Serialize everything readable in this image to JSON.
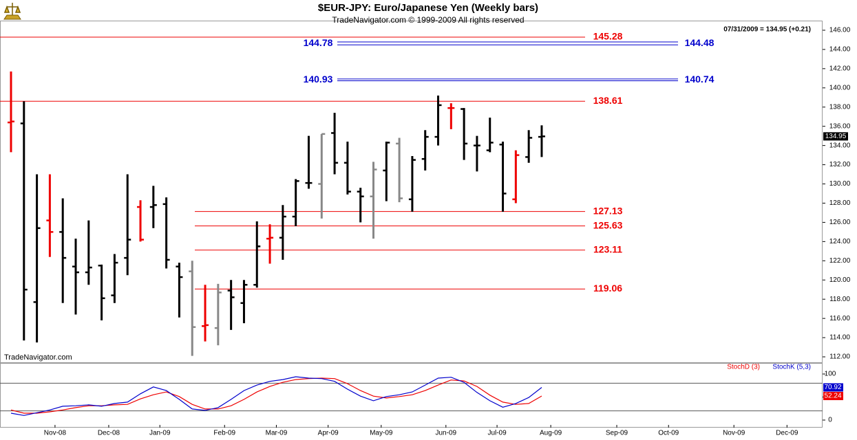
{
  "chart_data": [
    {
      "type": "ohlc",
      "title": "$EUR-JPY:  Euro/Japanese Yen  (Weekly bars)",
      "subtitle": "TradeNavigator.com © 1999-2009 All rights reserved",
      "annotation": "07/31/2009 = 134.95 (+0.21)",
      "watermark": "TradeNavigator.com",
      "xlim": [
        -0.85,
        62.7
      ],
      "ylim": [
        111.43,
        147.0
      ],
      "yticks": [
        {
          "value": 112,
          "label": "112.00"
        },
        {
          "value": 114,
          "label": "114.00"
        },
        {
          "value": 116,
          "label": "116.00"
        },
        {
          "value": 118,
          "label": "118.00"
        },
        {
          "value": 120,
          "label": "120.00"
        },
        {
          "value": 122,
          "label": "122.00"
        },
        {
          "value": 124,
          "label": "124.00"
        },
        {
          "value": 126,
          "label": "126.00"
        },
        {
          "value": 128,
          "label": "128.00"
        },
        {
          "value": 130,
          "label": "130.00"
        },
        {
          "value": 132,
          "label": "132.00"
        },
        {
          "value": 134,
          "label": "134.00"
        },
        {
          "value": 136,
          "label": "136.00"
        },
        {
          "value": 138,
          "label": "138.00"
        },
        {
          "value": 140,
          "label": "140.00"
        },
        {
          "value": 142,
          "label": "142.00"
        },
        {
          "value": 144,
          "label": "144.00"
        },
        {
          "value": 146,
          "label": "146.00"
        }
      ],
      "open": [
        136.4,
        136.3,
        117.7,
        126.2,
        125.0,
        121.4,
        120.8,
        121.5,
        118.4,
        122.3,
        127.6,
        127.6,
        127.9,
        121.4,
        120.9,
        115.2,
        115.0,
        118.9,
        117.6,
        119.5,
        124.3,
        124.4,
        126.6,
        130.1,
        130.0,
        135.3,
        132.2,
        129.2,
        128.7,
        131.4,
        134.2,
        128.4,
        132.6,
        134.9,
        137.9,
        137.8,
        134.0,
        133.5,
        134.1,
        128.4,
        132.8,
        134.9
      ],
      "high": [
        141.7,
        138.6,
        131.0,
        131.0,
        128.5,
        124.3,
        126.2,
        121.6,
        122.7,
        131.0,
        128.3,
        129.8,
        128.6,
        121.8,
        122.0,
        119.5,
        119.6,
        120.0,
        120.0,
        126.1,
        125.8,
        127.8,
        130.5,
        135.0,
        135.2,
        137.4,
        134.4,
        129.6,
        132.3,
        134.4,
        134.8,
        132.9,
        135.6,
        139.2,
        138.4,
        137.9,
        135.0,
        136.9,
        134.4,
        133.5,
        135.6,
        136.1
      ],
      "low": [
        133.3,
        113.7,
        113.5,
        122.4,
        117.6,
        116.4,
        119.5,
        115.8,
        117.6,
        120.5,
        124.0,
        125.4,
        121.2,
        116.1,
        112.1,
        113.6,
        113.2,
        114.8,
        115.5,
        119.2,
        121.7,
        122.1,
        125.6,
        129.5,
        126.4,
        131.0,
        128.9,
        126.0,
        124.3,
        128.2,
        128.1,
        127.1,
        131.4,
        134.0,
        135.7,
        132.5,
        131.3,
        133.3,
        127.1,
        128.0,
        132.2,
        132.8
      ],
      "close": [
        136.5,
        119.0,
        125.4,
        125.0,
        122.3,
        120.8,
        121.3,
        118.1,
        121.8,
        124.2,
        124.2,
        127.8,
        122.1,
        120.3,
        115.1,
        115.3,
        118.7,
        118.2,
        119.5,
        123.5,
        124.4,
        126.6,
        130.3,
        130.1,
        135.2,
        132.2,
        129.2,
        128.7,
        131.5,
        134.3,
        128.5,
        132.5,
        134.9,
        138.2,
        137.9,
        134.2,
        134.0,
        134.3,
        129.0,
        133.0,
        134.8,
        134.95
      ],
      "colors": [
        "#ee0000",
        "#000000",
        "#000000",
        "#ee0000",
        "#000000",
        "#000000",
        "#000000",
        "#000000",
        "#000000",
        "#000000",
        "#ee0000",
        "#000000",
        "#000000",
        "#000000",
        "#888888",
        "#ee0000",
        "#888888",
        "#000000",
        "#000000",
        "#000000",
        "#ee0000",
        "#000000",
        "#000000",
        "#000000",
        "#888888",
        "#000000",
        "#000000",
        "#000000",
        "#888888",
        "#000000",
        "#888888",
        "#000000",
        "#000000",
        "#000000",
        "#ee0000",
        "#000000",
        "#000000",
        "#000000",
        "#000000",
        "#ee0000",
        "#000000",
        "#000000"
      ],
      "levels": [
        {
          "value": 145.28,
          "color": "#ee0000"
        },
        {
          "value": 138.61,
          "color": "#ee0000"
        },
        {
          "value": 127.13,
          "color": "#ee0000"
        },
        {
          "value": 125.63,
          "color": "#ee0000"
        },
        {
          "value": 123.11,
          "color": "#ee0000"
        },
        {
          "value": 119.06,
          "color": "#ee0000"
        },
        {
          "value": 144.78,
          "color": "#0000cc"
        },
        {
          "value": 144.48,
          "color": "#0000cc"
        },
        {
          "value": 140.93,
          "color": "#0000cc"
        },
        {
          "value": 140.74,
          "color": "#0000cc"
        }
      ]
    },
    {
      "type": "line",
      "xlim": [
        -0.85,
        62.7
      ],
      "ylim": [
        -16.4,
        123.9
      ],
      "yticks": [
        0,
        50,
        100
      ],
      "levels": [
        20,
        80
      ],
      "xticks": [
        {
          "value": 3.4,
          "label": "Nov-08"
        },
        {
          "value": 7.55,
          "label": "Dec-08"
        },
        {
          "value": 11.5,
          "label": "Jan-09"
        },
        {
          "value": 16.5,
          "label": "Feb-09"
        },
        {
          "value": 20.5,
          "label": "Mar-09"
        },
        {
          "value": 24.5,
          "label": "Apr-09"
        },
        {
          "value": 28.6,
          "label": "May-09"
        },
        {
          "value": 33.6,
          "label": "Jun-09"
        },
        {
          "value": 37.55,
          "label": "Jul-09"
        },
        {
          "value": 41.7,
          "label": "Aug-09"
        },
        {
          "value": 46.8,
          "label": "Sep-09"
        },
        {
          "value": 50.8,
          "label": "Oct-09"
        },
        {
          "value": 55.85,
          "label": "Nov-09"
        },
        {
          "value": 59.95,
          "label": "Dec-09"
        }
      ],
      "series": [
        {
          "name": "StochD (3)",
          "color": "#ee0000",
          "values": [
            22,
            15,
            15,
            18,
            22,
            27,
            31,
            31,
            33,
            34,
            46,
            55,
            61,
            51,
            34,
            24,
            24,
            31,
            45,
            61,
            73,
            82,
            88,
            90,
            91,
            90,
            79,
            64,
            52,
            48,
            51,
            55,
            64,
            76,
            87,
            85,
            73,
            54,
            39,
            34,
            36,
            52.24
          ]
        },
        {
          "name": "StochK (5,3)",
          "color": "#0000cc",
          "values": [
            15,
            10,
            16,
            22,
            30,
            31,
            33,
            30,
            36,
            39,
            57,
            72,
            64,
            45,
            24,
            21,
            27,
            45,
            64,
            76,
            84,
            88,
            94,
            91,
            90,
            84,
            67,
            52,
            42,
            51,
            55,
            61,
            76,
            91,
            93,
            82,
            60,
            42,
            28,
            36,
            49,
            70.92
          ]
        }
      ]
    }
  ]
}
